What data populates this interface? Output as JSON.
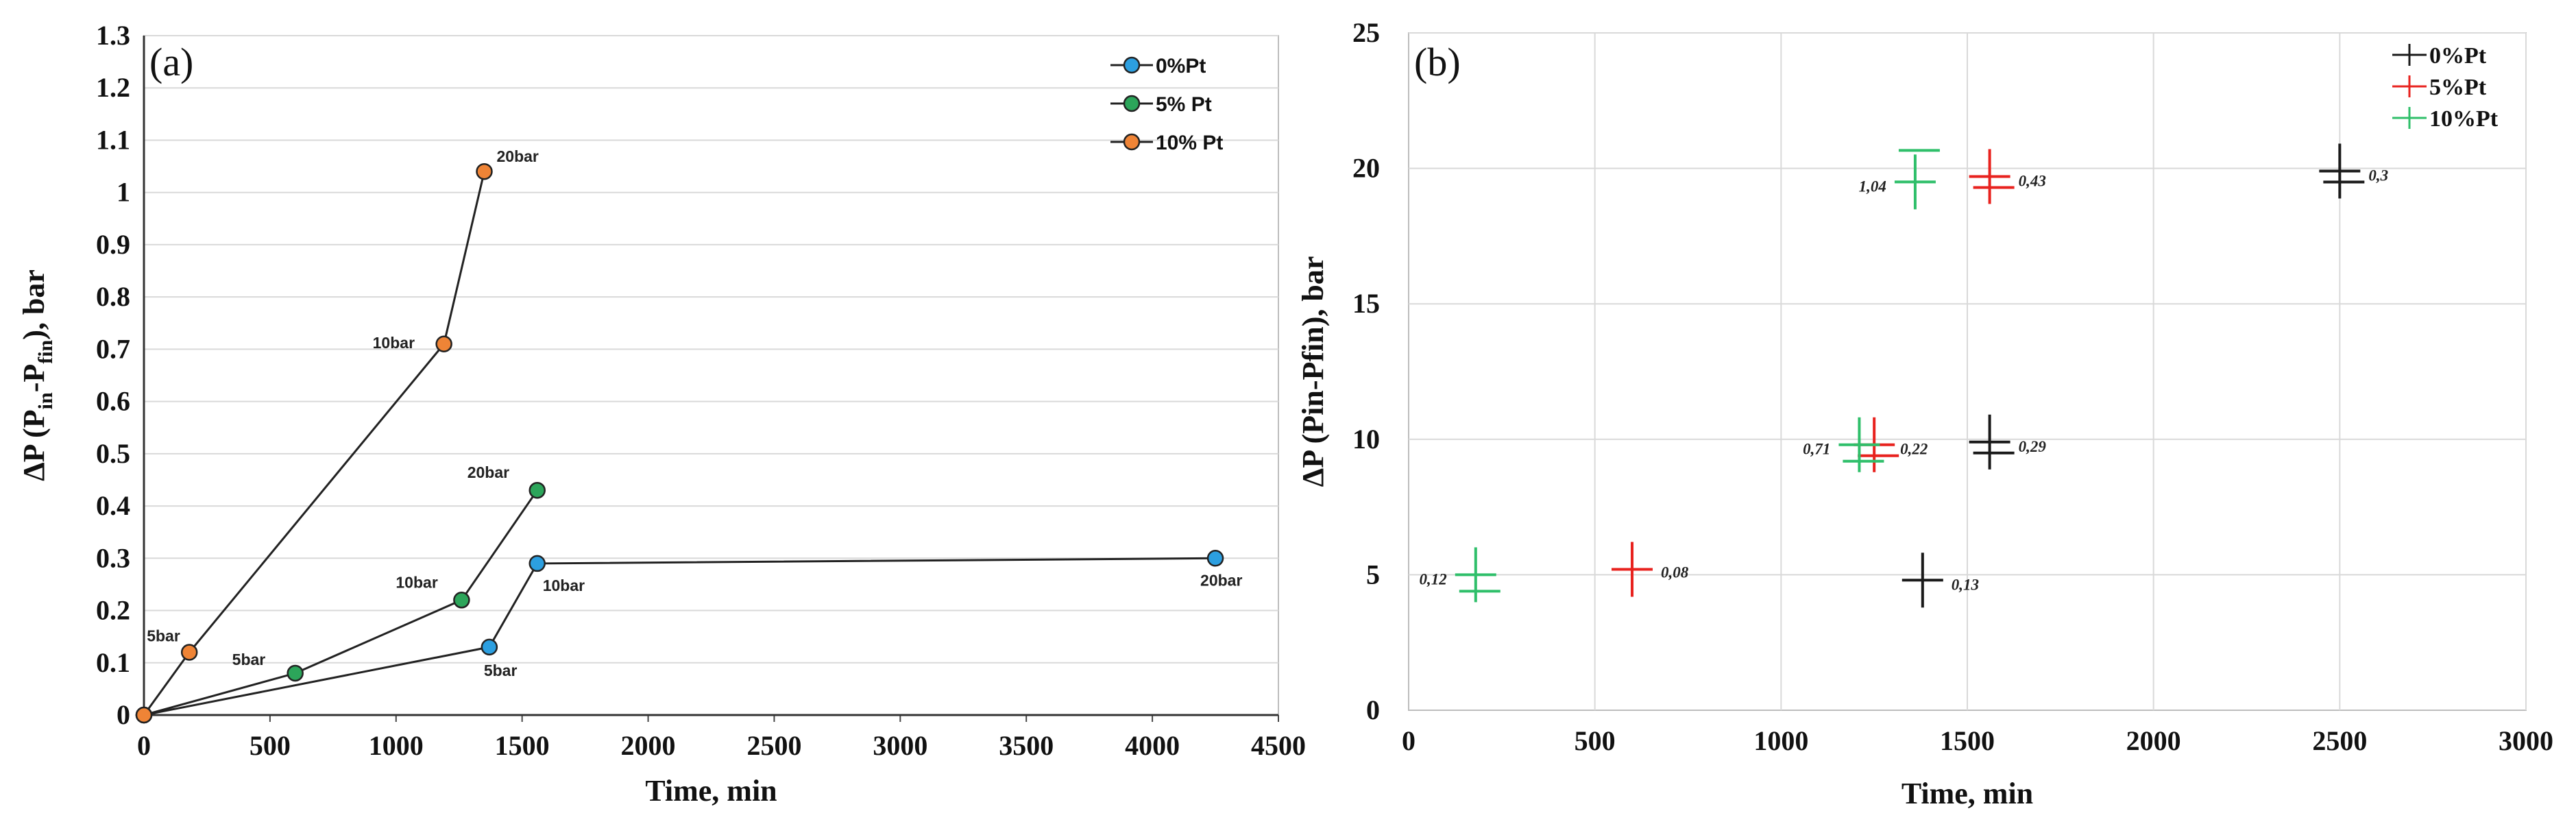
{
  "chart_data": [
    {
      "panel": "(a)",
      "type": "line",
      "xlabel": "Time, min",
      "ylabel": "ΔP (P_in-P_fin), bar",
      "ylabel_base": "ΔP (P",
      "ylabel_sub1": "in",
      "ylabel_mid": "-P",
      "ylabel_sub2": "fin",
      "ylabel_end": "), bar",
      "xlim": [
        0,
        4500
      ],
      "ylim": [
        0,
        1.3
      ],
      "xticks": [
        0,
        500,
        1000,
        1500,
        2000,
        2500,
        3000,
        3500,
        4000,
        4500
      ],
      "yticks": [
        "0",
        "0.1",
        "0.2",
        "0.3",
        "0.4",
        "0.5",
        "0.6",
        "0.7",
        "0.8",
        "0.9",
        "1",
        "1.1",
        "1.2",
        "1.3"
      ],
      "grid": true,
      "legend": "top-right",
      "series": [
        {
          "name": "0%Pt",
          "color": "#2c9fe0",
          "points": [
            {
              "x": 0,
              "y": 0,
              "label": ""
            },
            {
              "x": 1370,
              "y": 0.13,
              "label": "5bar"
            },
            {
              "x": 1560,
              "y": 0.29,
              "label": "10bar"
            },
            {
              "x": 4250,
              "y": 0.3,
              "label": "20bar"
            }
          ]
        },
        {
          "name": "5% Pt",
          "color": "#2ca55a",
          "points": [
            {
              "x": 0,
              "y": 0,
              "label": ""
            },
            {
              "x": 600,
              "y": 0.08,
              "label": "5bar"
            },
            {
              "x": 1260,
              "y": 0.22,
              "label": "10bar"
            },
            {
              "x": 1560,
              "y": 0.43,
              "label": "20bar"
            }
          ]
        },
        {
          "name": "10% Pt",
          "color": "#ef8436",
          "points": [
            {
              "x": 0,
              "y": 0,
              "label": ""
            },
            {
              "x": 180,
              "y": 0.12,
              "label": "5bar"
            },
            {
              "x": 1190,
              "y": 0.71,
              "label": "10bar"
            },
            {
              "x": 1350,
              "y": 1.04,
              "label": "20bar"
            }
          ]
        }
      ]
    },
    {
      "panel": "(b)",
      "type": "scatter",
      "xlabel": "Time, min",
      "ylabel": "ΔP (Pin-Pfin), bar",
      "xlim": [
        0,
        3000
      ],
      "ylim": [
        0,
        25
      ],
      "xticks": [
        0,
        500,
        1000,
        1500,
        2000,
        2500,
        3000
      ],
      "yticks": [
        0,
        5,
        10,
        15,
        20,
        25
      ],
      "grid": true,
      "legend": "top-right",
      "series": [
        {
          "name": "0%Pt",
          "color": "#1a1a1a",
          "points": [
            {
              "x": 1380,
              "y": 4.8,
              "label": "0,13"
            },
            {
              "x": 1560,
              "y": 9.9,
              "label": "0,29"
            },
            {
              "x": 2500,
              "y": 19.9,
              "label": "0,3"
            }
          ]
        },
        {
          "name": "5%Pt",
          "color": "#e8221e",
          "points": [
            {
              "x": 600,
              "y": 5.2,
              "label": "0,08"
            },
            {
              "x": 1250,
              "y": 9.8,
              "label": "0,22"
            },
            {
              "x": 1560,
              "y": 19.7,
              "label": "0,43"
            }
          ]
        },
        {
          "name": "10%Pt",
          "color": "#2fbf6a",
          "points": [
            {
              "x": 180,
              "y": 5.0,
              "label": "0,12"
            },
            {
              "x": 1210,
              "y": 9.8,
              "label": "0,71"
            },
            {
              "x": 1360,
              "y": 19.5,
              "label": "1,04"
            }
          ]
        }
      ]
    }
  ]
}
